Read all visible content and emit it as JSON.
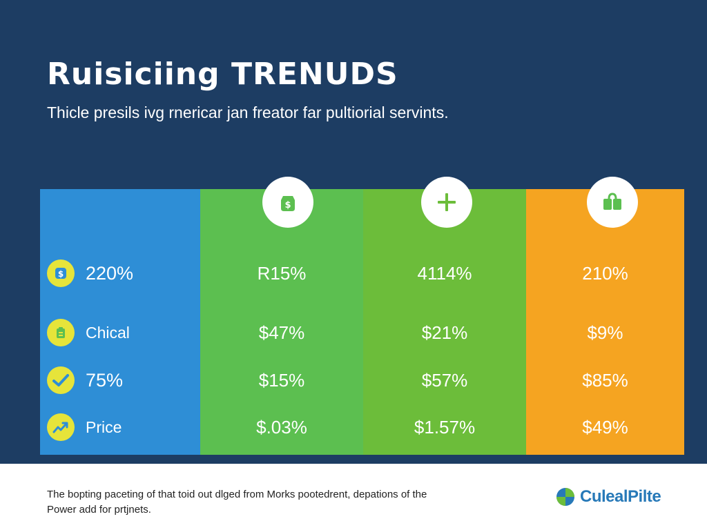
{
  "header": {
    "title": "Ruisiciing TRENUDS",
    "subtitle": "Thicle presils ivg rnericar jan freator far pultiorial servints."
  },
  "table": {
    "columns": [
      {
        "icon": "money-bag-icon",
        "color": "#2e8ed6"
      },
      {
        "icon": "dollar-bag-icon",
        "color": "#5cbf50"
      },
      {
        "icon": "plus-icon",
        "color": "#6cbd3a"
      },
      {
        "icon": "shopping-bag-icon",
        "color": "#f5a421"
      }
    ],
    "rows": [
      {
        "icon": "dollar-icon",
        "label": "220%",
        "values": [
          "R15%",
          "4114%",
          "210%"
        ]
      },
      {
        "icon": "clipboard-icon",
        "label": "Chical",
        "values": [
          "$47%",
          "$21%",
          "$9%"
        ]
      },
      {
        "icon": "checkmark-icon",
        "label": "75%",
        "values": [
          "$15%",
          "$57%",
          "$85%"
        ]
      },
      {
        "icon": "trend-up-icon",
        "label": "Price",
        "values": [
          "$.03%",
          "$1.57%",
          "$49%"
        ]
      }
    ]
  },
  "footer": {
    "note": "The bopting paceting of that toid out dlged from Morks pootedrent, depations of the Power add for prtjnets.",
    "brand": "CulealPilte",
    "brand_colors": {
      "blue": "#2779b8",
      "green": "#6cbd3a"
    }
  }
}
